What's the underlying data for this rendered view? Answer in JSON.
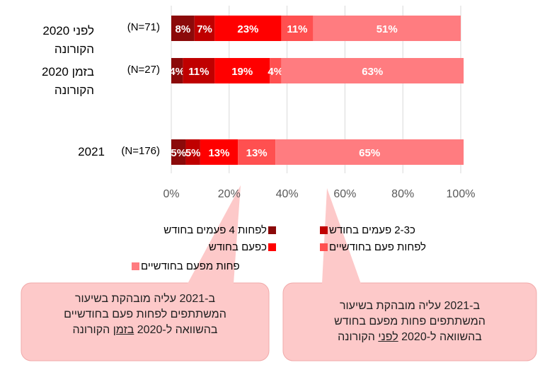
{
  "chart_data": {
    "type": "stacked-bar-horizontal",
    "categories": [
      "2020 לפני הקורונה",
      "2020 בזמן הקורונה",
      "2021"
    ],
    "n_labels": [
      "(N=71)",
      "(N=27)",
      "(N=176)"
    ],
    "series": [
      {
        "name": "לפחות 4 פעמים בחודש",
        "color": "#8b0a0a",
        "values": [
          8,
          4,
          5
        ],
        "value_labels": [
          "8%",
          "4%",
          "5%"
        ]
      },
      {
        "name": "כ2-3 פעמים בחודש",
        "color": "#c00000",
        "values": [
          7,
          11,
          5
        ],
        "value_labels": [
          "7%",
          "11%",
          "5%"
        ]
      },
      {
        "name": "כפעם בחודש",
        "color": "#ff0000",
        "values": [
          23,
          19,
          13
        ],
        "value_labels": [
          "23%",
          "19%",
          "13%"
        ]
      },
      {
        "name": "לפחות פעם בחודשיים",
        "color": "#ff5050",
        "values": [
          11,
          4,
          13
        ],
        "value_labels": [
          "11%",
          "4%",
          "13%"
        ]
      },
      {
        "name": "פחות מפעם בחודשיים",
        "color": "#ff7c80",
        "values": [
          51,
          63,
          65
        ],
        "value_labels": [
          "51%",
          "63%",
          "65%"
        ]
      }
    ],
    "xlim": [
      0,
      100
    ],
    "xticks": [
      {
        "value": 0,
        "label": "0%"
      },
      {
        "value": 20,
        "label": "20%"
      },
      {
        "value": 40,
        "label": "40%"
      },
      {
        "value": 60,
        "label": "60%"
      },
      {
        "value": 80,
        "label": "80%"
      },
      {
        "value": 100,
        "label": "100%"
      }
    ],
    "grid": true,
    "annotations": [
      {
        "lines": [
          "ב-2021 עליה מובהקת בשיעור",
          "המשתתפים לפחות פעם בחודשיים"
        ],
        "last_line": {
          "before": "בהשוואה ל-2020 ",
          "underlined": "בזמן",
          "after": " הקורונה"
        }
      },
      {
        "lines": [
          "ב-2021 עליה מובהקת בשיעור",
          "המשתתפים פחות מפעם בחודש"
        ],
        "last_line": {
          "before": "בהשוואה ל-2020 ",
          "underlined": "לפני",
          "after": " הקורונה"
        }
      }
    ]
  }
}
